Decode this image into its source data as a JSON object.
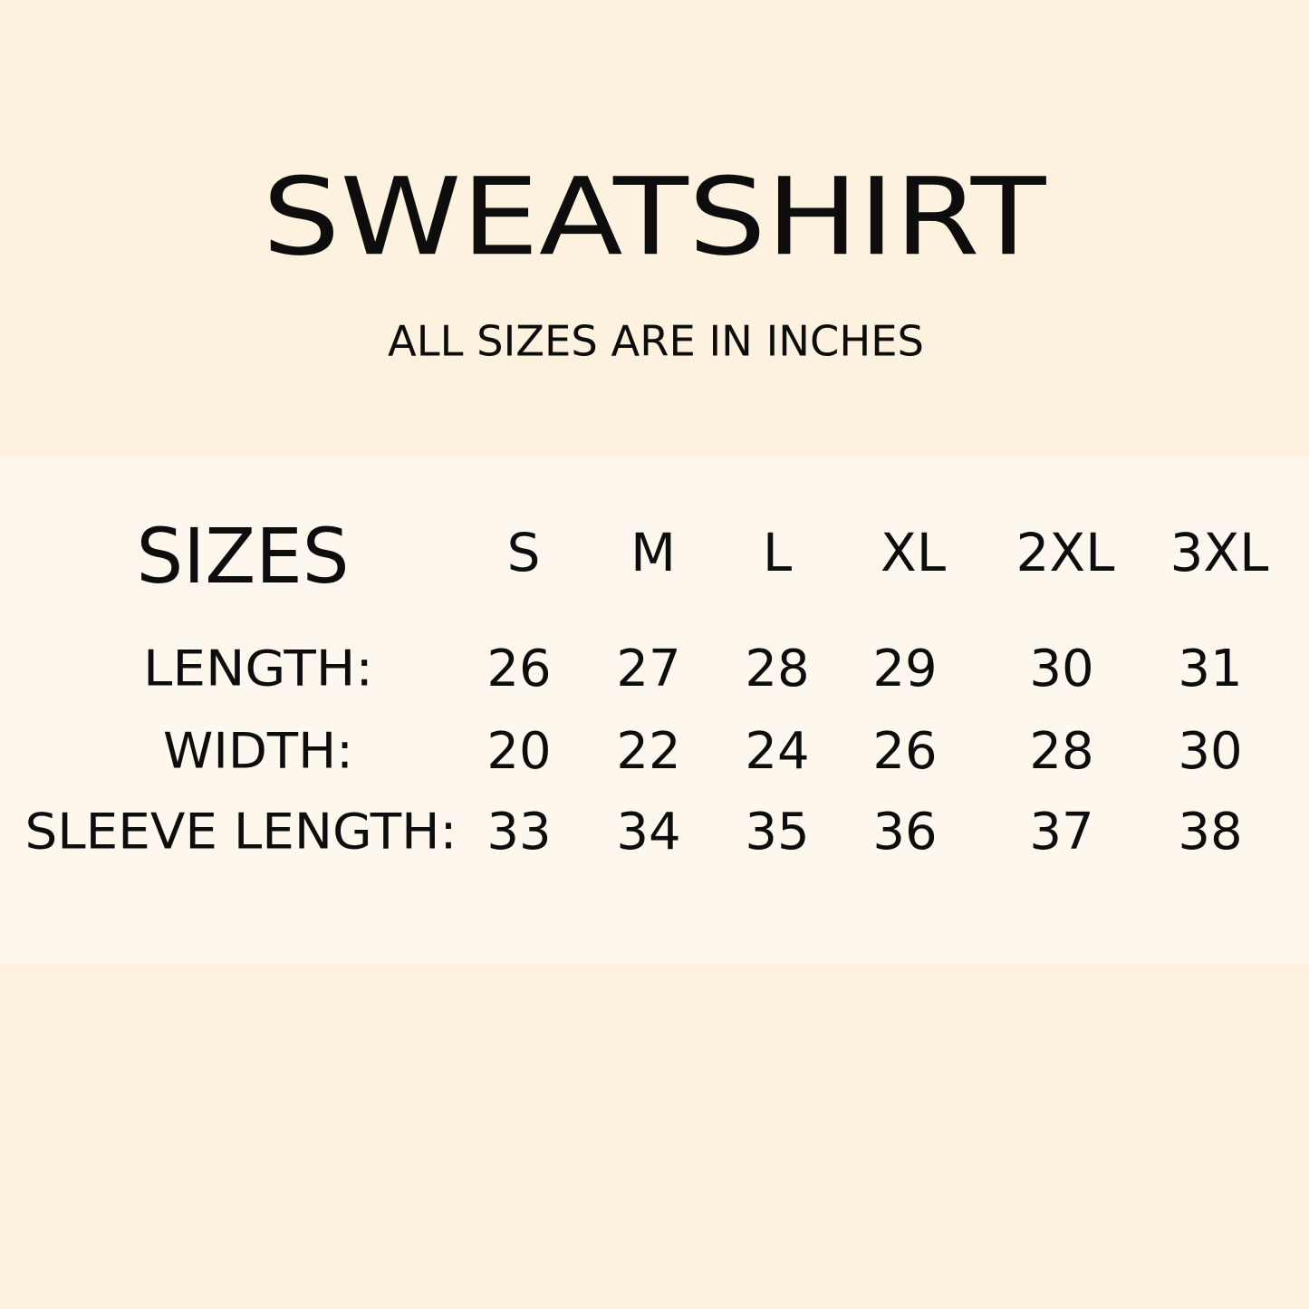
{
  "header": {
    "title": "SWEATSHIRT",
    "subtitle": "ALL SIZES ARE IN INCHES"
  },
  "table": {
    "columns": [
      "SIZES",
      "S",
      "M",
      "L",
      "XL",
      "2XL",
      "3XL"
    ],
    "rows": [
      [
        "LENGTH:",
        26,
        27,
        28,
        29,
        30,
        31
      ],
      [
        "WIDTH:",
        20,
        22,
        24,
        26,
        28,
        30
      ],
      [
        "SLEEVE LENGTH:",
        33,
        34,
        35,
        36,
        37,
        38
      ]
    ]
  }
}
